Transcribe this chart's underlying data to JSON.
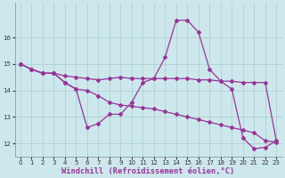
{
  "xlabel": "Windchill (Refroidissement éolien,°C)",
  "background_color": "#cce8ec",
  "line_color": "#993399",
  "grid_color": "#aacccc",
  "xlim": [
    -0.5,
    23.5
  ],
  "ylim": [
    11.5,
    17.3
  ],
  "yticks": [
    12,
    13,
    14,
    15,
    16
  ],
  "xticks": [
    0,
    1,
    2,
    3,
    4,
    5,
    6,
    7,
    8,
    9,
    10,
    11,
    12,
    13,
    14,
    15,
    16,
    17,
    18,
    19,
    20,
    21,
    22,
    23
  ],
  "series": [
    [
      15.0,
      14.8,
      14.65,
      14.65,
      14.55,
      14.5,
      14.45,
      14.4,
      14.45,
      14.5,
      14.45,
      14.45,
      14.45,
      14.45,
      14.45,
      14.45,
      14.4,
      14.4,
      14.35,
      14.35,
      14.3,
      14.3,
      14.3,
      12.1
    ],
    [
      15.0,
      14.8,
      14.65,
      14.65,
      14.3,
      14.05,
      12.6,
      12.75,
      13.1,
      13.1,
      13.55,
      14.3,
      14.45,
      15.25,
      16.65,
      16.65,
      16.2,
      14.8,
      14.35,
      14.05,
      12.2,
      11.8,
      11.85,
      12.1
    ],
    [
      15.0,
      14.8,
      14.65,
      14.65,
      14.3,
      14.05,
      14.0,
      13.8,
      13.55,
      13.45,
      13.4,
      13.35,
      13.3,
      13.2,
      13.1,
      13.0,
      12.9,
      12.8,
      12.7,
      12.6,
      12.5,
      12.4,
      12.1,
      12.05
    ]
  ],
  "marker": "D",
  "markersize": 2.0,
  "linewidth": 0.9,
  "tick_fontsize": 5.0,
  "xlabel_fontsize": 6.2
}
